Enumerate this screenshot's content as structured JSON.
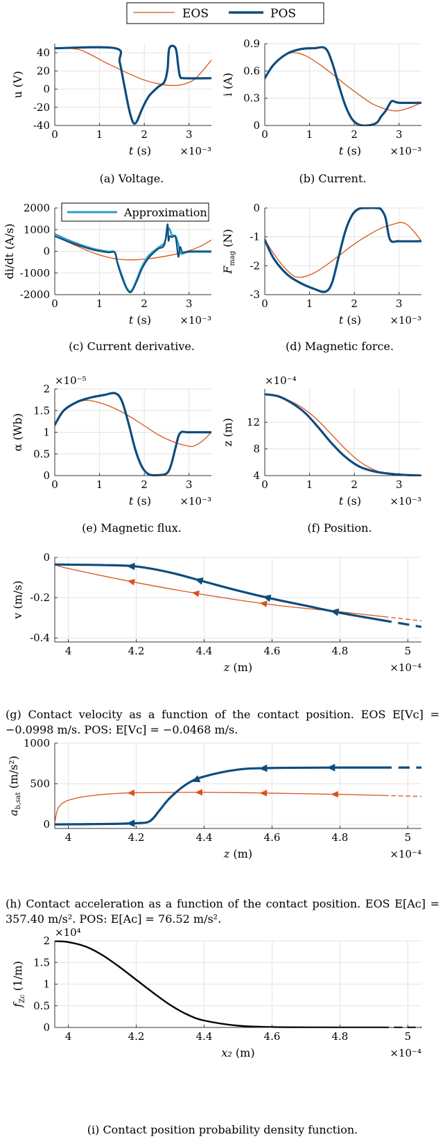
{
  "legend": {
    "entries": [
      {
        "label": "EOS",
        "color": "#D95319"
      },
      {
        "label": "POS",
        "color": "#0E4C7D"
      }
    ]
  },
  "approx_color": "#2E9CC8",
  "captions": {
    "a": "(a) Voltage.",
    "b": "(b) Current.",
    "c": "(c) Current derivative.",
    "d": "(d) Magnetic force.",
    "e": "(e) Magnetic flux.",
    "f": "(f) Position.",
    "g": "(g) Contact velocity as a function of the contact position. EOS E[Vᴄ] = −0.0998 m/s. POS: E[Vᴄ] = −0.0468 m/s.",
    "h": "(h) Contact acceleration as a function of the contact position. EOS E[Aᴄ] = 357.40 m/s². POS: E[Aᴄ] = 76.52 m/s².",
    "i": "(i) Contact position probability density function."
  },
  "chart_data": [
    {
      "id": "a",
      "type": "line",
      "ylabel": "u (V)",
      "xlabel": "t (s)",
      "x_multiplier": "×10⁻³",
      "y_multiplier": "",
      "xlim": [
        0,
        3.5
      ],
      "ylim": [
        -40,
        50
      ],
      "xticks": [
        0,
        1,
        2,
        3
      ],
      "xtick_labels": [
        "0",
        "1",
        "2",
        "3"
      ],
      "yticks": [
        -40,
        -20,
        0,
        20,
        40
      ],
      "ytick_labels": [
        "-40",
        "-20",
        "0",
        "20",
        "40"
      ],
      "grid": true,
      "series": [
        {
          "name": "EOS",
          "color": "#D95319",
          "width": 1.3,
          "x": [
            0,
            0.5,
            0.8,
            1.1,
            1.4,
            1.7,
            2.0,
            2.3,
            2.6,
            2.85,
            3.1,
            3.3,
            3.5
          ],
          "y": [
            45,
            44,
            38,
            30,
            23,
            16,
            10,
            6,
            4,
            5,
            10,
            20,
            32
          ]
        },
        {
          "name": "POS",
          "color": "#0E4C7D",
          "width": 3.2,
          "x": [
            0,
            1.35,
            1.45,
            1.55,
            1.65,
            1.72,
            1.78,
            1.85,
            1.95,
            2.1,
            2.3,
            2.45,
            2.52,
            2.56,
            2.7,
            2.76,
            2.8,
            2.9,
            3.5
          ],
          "y": [
            45,
            45,
            30,
            5,
            -20,
            -33,
            -38,
            -34,
            -22,
            -8,
            2,
            8,
            22,
            45,
            45,
            25,
            14,
            12,
            12
          ]
        }
      ]
    },
    {
      "id": "b",
      "type": "line",
      "ylabel": "i (A)",
      "xlabel": "t (s)",
      "x_multiplier": "×10⁻³",
      "y_multiplier": "",
      "xlim": [
        0,
        3.5
      ],
      "ylim": [
        0,
        0.9
      ],
      "xticks": [
        0,
        1,
        2,
        3
      ],
      "xtick_labels": [
        "0",
        "1",
        "2",
        "3"
      ],
      "yticks": [
        0,
        0.3,
        0.6,
        0.9
      ],
      "ytick_labels": [
        "0",
        "0.3",
        "0.6",
        "0.9"
      ],
      "grid": true,
      "series": [
        {
          "name": "EOS",
          "color": "#D95319",
          "width": 1.3,
          "x": [
            0,
            0.3,
            0.6,
            0.9,
            1.2,
            1.5,
            1.8,
            2.1,
            2.4,
            2.7,
            2.95,
            3.2,
            3.5
          ],
          "y": [
            0.52,
            0.72,
            0.8,
            0.77,
            0.68,
            0.57,
            0.45,
            0.34,
            0.24,
            0.18,
            0.16,
            0.19,
            0.25
          ]
        },
        {
          "name": "POS",
          "color": "#0E4C7D",
          "width": 3.2,
          "x": [
            0,
            0.2,
            0.5,
            0.8,
            1.1,
            1.35,
            1.5,
            1.65,
            1.8,
            1.95,
            2.1,
            2.3,
            2.5,
            2.6,
            2.7,
            2.78,
            2.85,
            3.0,
            3.5
          ],
          "y": [
            0.52,
            0.67,
            0.79,
            0.84,
            0.85,
            0.85,
            0.7,
            0.45,
            0.22,
            0.07,
            0.01,
            0.0,
            0.03,
            0.1,
            0.16,
            0.23,
            0.27,
            0.25,
            0.25
          ]
        }
      ]
    },
    {
      "id": "c",
      "type": "line",
      "ylabel": "di/dt (A/s)",
      "xlabel": "t (s)",
      "x_multiplier": "×10⁻³",
      "y_multiplier": "",
      "xlim": [
        0,
        3.5
      ],
      "ylim": [
        -2000,
        2000
      ],
      "xticks": [
        0,
        1,
        2,
        3
      ],
      "xtick_labels": [
        "0",
        "1",
        "2",
        "3"
      ],
      "yticks": [
        -2000,
        -1000,
        0,
        1000,
        2000
      ],
      "ytick_labels": [
        "-2000",
        "-1000",
        "0",
        "1000",
        "2000"
      ],
      "grid": true,
      "legend_label": "Approximation",
      "series": [
        {
          "name": "EOS",
          "color": "#D95319",
          "width": 1.3,
          "x": [
            0,
            0.3,
            0.6,
            0.9,
            1.2,
            1.5,
            1.8,
            2.1,
            2.4,
            2.7,
            3.0,
            3.25,
            3.5
          ],
          "y": [
            700,
            420,
            150,
            -100,
            -280,
            -380,
            -390,
            -340,
            -250,
            -130,
            30,
            230,
            520
          ]
        },
        {
          "name": "Approximation",
          "color": "#2E9CC8",
          "width": 2.6,
          "x": [
            0,
            0.3,
            0.6,
            0.9,
            1.2,
            1.34,
            1.4,
            1.5,
            1.6,
            1.68,
            1.75,
            1.85,
            1.95,
            2.1,
            2.3,
            2.45,
            2.52,
            2.56,
            2.62,
            2.7,
            2.76,
            2.82,
            3.0,
            3.5
          ],
          "y": [
            800,
            520,
            290,
            100,
            -10,
            -40,
            -500,
            -1100,
            -1650,
            -1850,
            -1700,
            -1200,
            -700,
            -200,
            150,
            400,
            950,
            1050,
            750,
            700,
            350,
            -100,
            -30,
            -30
          ]
        },
        {
          "name": "POS",
          "color": "#0E4C7D",
          "width": 2.2,
          "x": [
            0,
            0.3,
            0.6,
            0.9,
            1.2,
            1.34,
            1.4,
            1.5,
            1.6,
            1.68,
            1.75,
            1.85,
            1.95,
            2.1,
            2.3,
            2.45,
            2.52,
            2.54,
            2.57,
            2.62,
            2.7,
            2.76,
            2.8,
            2.86,
            3.0,
            3.5
          ],
          "y": [
            700,
            450,
            230,
            50,
            -50,
            -60,
            -550,
            -1200,
            -1700,
            -1900,
            -1750,
            -1300,
            -800,
            -300,
            100,
            300,
            1250,
            500,
            700,
            650,
            650,
            -250,
            200,
            -50,
            0,
            0
          ]
        }
      ]
    },
    {
      "id": "d",
      "type": "line",
      "ylabel": "F_mag (N)",
      "xlabel": "t (s)",
      "x_multiplier": "×10⁻³",
      "y_multiplier": "",
      "xlim": [
        0,
        3.5
      ],
      "ylim": [
        -3,
        0
      ],
      "xticks": [
        0,
        1,
        2,
        3
      ],
      "xtick_labels": [
        "0",
        "1",
        "2",
        "3"
      ],
      "yticks": [
        -3,
        -2,
        -1,
        0
      ],
      "ytick_labels": [
        "-3",
        "-2",
        "-1",
        "0"
      ],
      "grid": true,
      "series": [
        {
          "name": "EOS",
          "color": "#D95319",
          "width": 1.3,
          "x": [
            0,
            0.3,
            0.6,
            0.8,
            1.1,
            1.4,
            1.7,
            2.0,
            2.3,
            2.6,
            2.9,
            3.05,
            3.2,
            3.35,
            3.5
          ],
          "y": [
            -1.1,
            -1.8,
            -2.3,
            -2.4,
            -2.25,
            -1.95,
            -1.6,
            -1.25,
            -0.95,
            -0.7,
            -0.55,
            -0.5,
            -0.6,
            -0.85,
            -1.15
          ]
        },
        {
          "name": "POS",
          "color": "#0E4C7D",
          "width": 3.2,
          "x": [
            0,
            0.2,
            0.5,
            0.8,
            1.1,
            1.35,
            1.5,
            1.65,
            1.8,
            1.95,
            2.1,
            2.3,
            2.5,
            2.6,
            2.7,
            2.8,
            3.0,
            3.5
          ],
          "y": [
            -1.1,
            -1.75,
            -2.3,
            -2.6,
            -2.8,
            -2.9,
            -2.6,
            -1.7,
            -0.8,
            -0.25,
            -0.03,
            0,
            0,
            -0.05,
            -0.35,
            -1.1,
            -1.15,
            -1.15
          ]
        }
      ]
    },
    {
      "id": "e",
      "type": "line",
      "ylabel": "α (Wb)",
      "xlabel": "t (s)",
      "x_multiplier": "×10⁻³",
      "y_multiplier": "×10⁻⁵",
      "xlim": [
        0,
        3.5
      ],
      "ylim": [
        0,
        2
      ],
      "xticks": [
        0,
        1,
        2,
        3
      ],
      "xtick_labels": [
        "0",
        "1",
        "2",
        "3"
      ],
      "yticks": [
        0,
        0.5,
        1,
        1.5,
        2
      ],
      "ytick_labels": [
        "0",
        "0.5",
        "1",
        "1.5",
        "2"
      ],
      "grid": true,
      "series": [
        {
          "name": "EOS",
          "color": "#D95319",
          "width": 1.3,
          "x": [
            0,
            0.3,
            0.6,
            0.8,
            1.1,
            1.4,
            1.7,
            2.0,
            2.3,
            2.6,
            2.9,
            3.1,
            3.3,
            3.5
          ],
          "y": [
            1.2,
            1.6,
            1.72,
            1.73,
            1.65,
            1.52,
            1.35,
            1.15,
            0.95,
            0.8,
            0.7,
            0.68,
            0.8,
            1.0
          ]
        },
        {
          "name": "POS",
          "color": "#0E4C7D",
          "width": 3.2,
          "x": [
            0,
            0.2,
            0.5,
            0.8,
            1.1,
            1.35,
            1.5,
            1.65,
            1.8,
            1.95,
            2.1,
            2.3,
            2.5,
            2.6,
            2.7,
            2.8,
            3.0,
            3.5
          ],
          "y": [
            1.17,
            1.5,
            1.7,
            1.8,
            1.86,
            1.9,
            1.72,
            1.2,
            0.6,
            0.2,
            0.03,
            0.01,
            0.05,
            0.25,
            0.65,
            0.98,
            1.0,
            1.0
          ]
        }
      ]
    },
    {
      "id": "f",
      "type": "line",
      "ylabel": "z (m)",
      "xlabel": "t (s)",
      "x_multiplier": "×10⁻³",
      "y_multiplier": "×10⁻⁴",
      "xlim": [
        0,
        3.5
      ],
      "ylim": [
        4,
        17
      ],
      "xticks": [
        0,
        1,
        2,
        3
      ],
      "xtick_labels": [
        "0",
        "1",
        "2",
        "3"
      ],
      "yticks": [
        4,
        8,
        12
      ],
      "ytick_labels": [
        "4",
        "8",
        "12"
      ],
      "grid": true,
      "series": [
        {
          "name": "EOS",
          "color": "#D95319",
          "width": 1.3,
          "x": [
            0,
            0.3,
            0.6,
            0.9,
            1.2,
            1.5,
            1.8,
            2.1,
            2.4,
            2.7,
            3.0,
            3.3,
            3.5
          ],
          "y": [
            16.2,
            15.9,
            15.1,
            13.9,
            12.2,
            10.1,
            8.0,
            6.2,
            5.0,
            4.3,
            4.08,
            4.02,
            4.0
          ]
        },
        {
          "name": "POS",
          "color": "#0E4C7D",
          "width": 3.2,
          "x": [
            0,
            0.3,
            0.6,
            0.9,
            1.2,
            1.5,
            1.8,
            2.1,
            2.4,
            2.7,
            3.0,
            3.3,
            3.5
          ],
          "y": [
            16.2,
            15.9,
            14.9,
            13.4,
            11.2,
            8.8,
            6.8,
            5.4,
            4.7,
            4.35,
            4.15,
            4.05,
            4.0
          ]
        }
      ]
    },
    {
      "id": "g",
      "type": "line",
      "ylabel": "v (m/s)",
      "xlabel": "z (m)",
      "x_multiplier": "×10⁻⁴",
      "y_multiplier": "",
      "xlim": [
        3.96,
        5.04
      ],
      "ylim": [
        -0.42,
        0
      ],
      "xticks": [
        4,
        4.2,
        4.4,
        4.6,
        4.8,
        5
      ],
      "xtick_labels": [
        "4",
        "4.2",
        "4.4",
        "4.6",
        "4.8",
        "5"
      ],
      "yticks": [
        -0.4,
        -0.2,
        0
      ],
      "ytick_labels": [
        "-0.4",
        "-0.2",
        "0"
      ],
      "grid": true,
      "series": [
        {
          "name": "EOS",
          "color": "#D95319",
          "width": 1.3,
          "solid_until": 4.93,
          "x": [
            3.96,
            4.0,
            4.2,
            4.4,
            4.6,
            4.8,
            5.04
          ],
          "y": [
            -0.035,
            -0.055,
            -0.125,
            -0.185,
            -0.235,
            -0.27,
            -0.315
          ],
          "arrows": [
            4.19,
            4.38,
            4.58,
            4.79
          ]
        },
        {
          "name": "POS",
          "color": "#0E4C7D",
          "width": 3.2,
          "solid_until": 4.92,
          "x": [
            3.96,
            4.0,
            4.1,
            4.2,
            4.3,
            4.4,
            4.5,
            4.6,
            4.7,
            4.8,
            4.9,
            5.04
          ],
          "y": [
            -0.035,
            -0.036,
            -0.038,
            -0.045,
            -0.075,
            -0.12,
            -0.165,
            -0.205,
            -0.24,
            -0.275,
            -0.305,
            -0.345
          ],
          "arrows": [
            4.19,
            4.39,
            4.59,
            4.79
          ]
        }
      ]
    },
    {
      "id": "h",
      "type": "line",
      "ylabel": "a_b,sat (m/s²)",
      "xlabel": "z (m)",
      "x_multiplier": "×10⁻⁴",
      "y_multiplier": "",
      "xlim": [
        3.96,
        5.04
      ],
      "ylim": [
        -50,
        1000
      ],
      "xticks": [
        4,
        4.2,
        4.4,
        4.6,
        4.8,
        5
      ],
      "xtick_labels": [
        "4",
        "4.2",
        "4.4",
        "4.6",
        "4.8",
        "5"
      ],
      "yticks": [
        0,
        500,
        1000
      ],
      "ytick_labels": [
        "0",
        "500",
        "1000"
      ],
      "grid": true,
      "series": [
        {
          "name": "EOS",
          "color": "#D95319",
          "width": 1.3,
          "solid_until": 4.93,
          "x": [
            3.96,
            3.97,
            3.99,
            4.02,
            4.06,
            4.12,
            4.2,
            4.4,
            4.6,
            4.8,
            5.04
          ],
          "y": [
            30,
            200,
            280,
            320,
            350,
            375,
            390,
            395,
            385,
            370,
            345
          ],
          "arrows": [
            4.19,
            4.39,
            4.58,
            4.79
          ]
        },
        {
          "name": "POS",
          "color": "#0E4C7D",
          "width": 3.2,
          "solid_until": 4.92,
          "x": [
            3.96,
            4.1,
            4.2,
            4.24,
            4.27,
            4.3,
            4.35,
            4.4,
            4.5,
            4.6,
            4.8,
            5.04
          ],
          "y": [
            0,
            5,
            15,
            40,
            180,
            330,
            500,
            590,
            675,
            695,
            700,
            700
          ],
          "arrows": [
            4.19,
            4.38,
            4.58,
            4.78
          ]
        }
      ]
    },
    {
      "id": "i",
      "type": "line",
      "ylabel": "f_Zc (1/m)",
      "xlabel": "x₂ (m)",
      "x_multiplier": "×10⁻⁴",
      "y_multiplier": "×10⁴",
      "xlim": [
        3.96,
        5.04
      ],
      "ylim": [
        0,
        2
      ],
      "xticks": [
        4,
        4.2,
        4.4,
        4.6,
        4.8,
        5
      ],
      "xtick_labels": [
        "4",
        "4.2",
        "4.4",
        "4.6",
        "4.8",
        "5"
      ],
      "yticks": [
        0,
        0.5,
        1,
        1.5,
        2
      ],
      "ytick_labels": [
        "0",
        "0.5",
        "1",
        "1.5",
        "2"
      ],
      "grid": true,
      "series": [
        {
          "name": "",
          "color": "#000000",
          "width": 2.4,
          "solid_until": 4.92,
          "x": [
            3.96,
            4.0,
            4.05,
            4.1,
            4.15,
            4.2,
            4.25,
            4.3,
            4.35,
            4.4,
            4.5,
            4.6,
            4.7,
            4.8,
            5.04
          ],
          "y": [
            1.99,
            1.97,
            1.87,
            1.67,
            1.4,
            1.1,
            0.8,
            0.52,
            0.3,
            0.16,
            0.04,
            0.01,
            0.003,
            0.001,
            0.0
          ]
        }
      ]
    }
  ]
}
